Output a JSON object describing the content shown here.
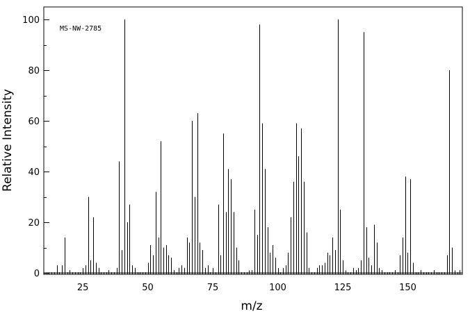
{
  "chart_data": {
    "type": "bar",
    "title": "",
    "annotation": "MS-NW-2785",
    "xlabel": "m/z",
    "ylabel": "Relative Intensity",
    "xlim": [
      10,
      171
    ],
    "ylim": [
      0,
      105
    ],
    "xticks": [
      25,
      50,
      75,
      100,
      125,
      150
    ],
    "yticks": [
      0,
      20,
      40,
      60,
      80,
      100
    ],
    "grid": false,
    "legend": "none",
    "color": "#000000",
    "peaks": [
      {
        "mz": 15,
        "i": 3
      },
      {
        "mz": 17,
        "i": 3
      },
      {
        "mz": 18,
        "i": 14
      },
      {
        "mz": 26,
        "i": 3
      },
      {
        "mz": 27,
        "i": 30
      },
      {
        "mz": 28,
        "i": 5
      },
      {
        "mz": 29,
        "i": 22
      },
      {
        "mz": 30,
        "i": 4
      },
      {
        "mz": 31,
        "i": 2
      },
      {
        "mz": 38,
        "i": 2
      },
      {
        "mz": 39,
        "i": 44
      },
      {
        "mz": 40,
        "i": 9
      },
      {
        "mz": 41,
        "i": 100
      },
      {
        "mz": 42,
        "i": 20
      },
      {
        "mz": 43,
        "i": 27
      },
      {
        "mz": 44,
        "i": 3
      },
      {
        "mz": 45,
        "i": 2
      },
      {
        "mz": 50,
        "i": 4
      },
      {
        "mz": 51,
        "i": 11
      },
      {
        "mz": 52,
        "i": 7
      },
      {
        "mz": 53,
        "i": 32
      },
      {
        "mz": 54,
        "i": 14
      },
      {
        "mz": 55,
        "i": 52
      },
      {
        "mz": 56,
        "i": 10
      },
      {
        "mz": 57,
        "i": 11
      },
      {
        "mz": 58,
        "i": 7
      },
      {
        "mz": 59,
        "i": 6
      },
      {
        "mz": 62,
        "i": 2
      },
      {
        "mz": 63,
        "i": 3
      },
      {
        "mz": 64,
        "i": 2
      },
      {
        "mz": 65,
        "i": 14
      },
      {
        "mz": 66,
        "i": 12
      },
      {
        "mz": 67,
        "i": 60
      },
      {
        "mz": 68,
        "i": 30
      },
      {
        "mz": 69,
        "i": 63
      },
      {
        "mz": 70,
        "i": 12
      },
      {
        "mz": 71,
        "i": 9
      },
      {
        "mz": 72,
        "i": 2
      },
      {
        "mz": 73,
        "i": 3
      },
      {
        "mz": 77,
        "i": 27
      },
      {
        "mz": 78,
        "i": 7
      },
      {
        "mz": 79,
        "i": 55
      },
      {
        "mz": 80,
        "i": 24
      },
      {
        "mz": 81,
        "i": 41
      },
      {
        "mz": 82,
        "i": 37
      },
      {
        "mz": 83,
        "i": 24
      },
      {
        "mz": 84,
        "i": 10
      },
      {
        "mz": 85,
        "i": 5
      },
      {
        "mz": 89,
        "i": 1
      },
      {
        "mz": 91,
        "i": 25
      },
      {
        "mz": 92,
        "i": 15
      },
      {
        "mz": 93,
        "i": 98
      },
      {
        "mz": 94,
        "i": 59
      },
      {
        "mz": 95,
        "i": 41
      },
      {
        "mz": 96,
        "i": 18
      },
      {
        "mz": 97,
        "i": 8
      },
      {
        "mz": 98,
        "i": 11
      },
      {
        "mz": 99,
        "i": 6
      },
      {
        "mz": 102,
        "i": 2
      },
      {
        "mz": 103,
        "i": 3
      },
      {
        "mz": 104,
        "i": 8
      },
      {
        "mz": 105,
        "i": 22
      },
      {
        "mz": 106,
        "i": 36
      },
      {
        "mz": 107,
        "i": 59
      },
      {
        "mz": 108,
        "i": 46
      },
      {
        "mz": 109,
        "i": 57
      },
      {
        "mz": 110,
        "i": 36
      },
      {
        "mz": 111,
        "i": 16
      },
      {
        "mz": 112,
        "i": 2
      },
      {
        "mz": 115,
        "i": 2
      },
      {
        "mz": 116,
        "i": 3
      },
      {
        "mz": 117,
        "i": 3
      },
      {
        "mz": 118,
        "i": 4
      },
      {
        "mz": 119,
        "i": 8
      },
      {
        "mz": 120,
        "i": 7
      },
      {
        "mz": 121,
        "i": 14
      },
      {
        "mz": 122,
        "i": 9
      },
      {
        "mz": 123,
        "i": 100
      },
      {
        "mz": 124,
        "i": 25
      },
      {
        "mz": 125,
        "i": 5
      },
      {
        "mz": 126,
        "i": 1
      },
      {
        "mz": 129,
        "i": 2
      },
      {
        "mz": 131,
        "i": 2
      },
      {
        "mz": 132,
        "i": 5
      },
      {
        "mz": 133,
        "i": 95
      },
      {
        "mz": 134,
        "i": 18
      },
      {
        "mz": 135,
        "i": 6
      },
      {
        "mz": 136,
        "i": 3
      },
      {
        "mz": 137,
        "i": 19
      },
      {
        "mz": 138,
        "i": 12
      },
      {
        "mz": 139,
        "i": 2
      },
      {
        "mz": 147,
        "i": 7
      },
      {
        "mz": 148,
        "i": 14
      },
      {
        "mz": 149,
        "i": 38
      },
      {
        "mz": 150,
        "i": 8
      },
      {
        "mz": 151,
        "i": 37
      },
      {
        "mz": 152,
        "i": 4
      },
      {
        "mz": 165,
        "i": 7
      },
      {
        "mz": 166,
        "i": 80
      },
      {
        "mz": 167,
        "i": 10
      },
      {
        "mz": 168,
        "i": 1
      }
    ]
  }
}
